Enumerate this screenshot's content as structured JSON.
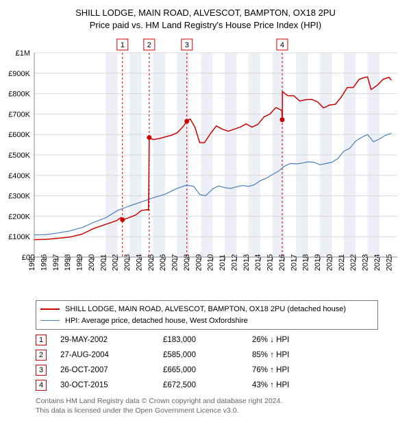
{
  "title_line1": "SHILL LODGE, MAIN ROAD, ALVESCOT, BAMPTON, OX18 2PU",
  "title_line2": "Price paid vs. HM Land Registry's House Price Index (HPI)",
  "chart": {
    "type": "line",
    "bg_color": "#ffffff",
    "plot_border_color": "#888888",
    "grid_color": "#d8d8d8",
    "grid_width": 1,
    "x_start_year": 1995,
    "x_end_year": 2025.5,
    "x_ticks": [
      1995,
      1996,
      1997,
      1998,
      1999,
      2000,
      2001,
      2002,
      2003,
      2004,
      2005,
      2006,
      2007,
      2008,
      2009,
      2010,
      2011,
      2012,
      2013,
      2014,
      2015,
      2016,
      2017,
      2018,
      2019,
      2020,
      2021,
      2022,
      2023,
      2024,
      2025
    ],
    "y_min": 0,
    "y_max": 1000000,
    "y_ticks": [
      0,
      100000,
      200000,
      300000,
      400000,
      500000,
      600000,
      700000,
      800000,
      900000,
      1000000
    ],
    "y_tick_labels": [
      "£0",
      "£100K",
      "£200K",
      "£300K",
      "£400K",
      "£500K",
      "£600K",
      "£700K",
      "£800K",
      "£900K",
      "£1M"
    ],
    "band_color": "#eceff5",
    "band_years": [
      [
        2001,
        2002
      ],
      [
        2003,
        2004
      ],
      [
        2005,
        2006
      ],
      [
        2007,
        2008
      ],
      [
        2009,
        2010
      ],
      [
        2011,
        2012
      ],
      [
        2013,
        2014
      ],
      [
        2015,
        2016
      ],
      [
        2017,
        2018
      ],
      [
        2019,
        2020
      ],
      [
        2021,
        2022
      ],
      [
        2023,
        2024
      ]
    ],
    "marker_vline_dash": "3,3",
    "marker_border_color": "#cc0000",
    "marker_fill_color": "#ffffff",
    "marker_text_color": "#000000",
    "marker_box_size": 16,
    "markers": [
      {
        "label": "1",
        "x": 2002.41
      },
      {
        "label": "2",
        "x": 2004.66
      },
      {
        "label": "3",
        "x": 2007.82
      },
      {
        "label": "4",
        "x": 2015.83
      }
    ],
    "series_property": {
      "color": "#cc0000",
      "width": 1.5,
      "points": [
        [
          1995,
          85000
        ],
        [
          1996,
          87000
        ],
        [
          1997,
          92000
        ],
        [
          1998,
          98000
        ],
        [
          1999,
          112000
        ],
        [
          2000,
          140000
        ],
        [
          2001,
          160000
        ],
        [
          2001.9,
          178000
        ],
        [
          2002.3,
          194000
        ],
        [
          2002.41,
          183000
        ],
        [
          2002.5,
          183000
        ],
        [
          2003.5,
          205000
        ],
        [
          2004.0,
          228000
        ],
        [
          2004.5,
          232000
        ],
        [
          2004.6,
          230000
        ],
        [
          2004.66,
          585000
        ],
        [
          2005,
          575000
        ],
        [
          2005.5,
          580000
        ],
        [
          2006,
          588000
        ],
        [
          2006.5,
          596000
        ],
        [
          2007,
          608000
        ],
        [
          2007.5,
          638000
        ],
        [
          2007.82,
          665000
        ],
        [
          2007.9,
          670000
        ],
        [
          2008.1,
          676000
        ],
        [
          2008.5,
          636000
        ],
        [
          2008.9,
          560000
        ],
        [
          2009.3,
          560000
        ],
        [
          2009.8,
          604000
        ],
        [
          2010.3,
          642000
        ],
        [
          2010.8,
          626000
        ],
        [
          2011.3,
          616000
        ],
        [
          2011.8,
          626000
        ],
        [
          2012.3,
          636000
        ],
        [
          2012.8,
          652000
        ],
        [
          2013.3,
          636000
        ],
        [
          2013.8,
          650000
        ],
        [
          2014.3,
          686000
        ],
        [
          2014.8,
          700000
        ],
        [
          2015.3,
          732000
        ],
        [
          2015.8,
          718000
        ],
        [
          2015.83,
          672500
        ],
        [
          2015.84,
          672500
        ],
        [
          2015.85,
          810000
        ],
        [
          2016.3,
          790000
        ],
        [
          2016.8,
          790000
        ],
        [
          2017.3,
          764000
        ],
        [
          2017.8,
          770000
        ],
        [
          2018.3,
          772000
        ],
        [
          2018.8,
          760000
        ],
        [
          2019.3,
          730000
        ],
        [
          2019.8,
          744000
        ],
        [
          2020.3,
          748000
        ],
        [
          2020.8,
          784000
        ],
        [
          2021.3,
          830000
        ],
        [
          2021.8,
          830000
        ],
        [
          2022.3,
          870000
        ],
        [
          2022.8,
          880000
        ],
        [
          2023.0,
          882000
        ],
        [
          2023.3,
          820000
        ],
        [
          2023.8,
          840000
        ],
        [
          2024.3,
          870000
        ],
        [
          2024.8,
          880000
        ],
        [
          2025.0,
          866000
        ]
      ]
    },
    "series_hpi": {
      "color": "#4a7ebb",
      "width": 1.2,
      "points": [
        [
          1995,
          108000
        ],
        [
          1996,
          110000
        ],
        [
          1997,
          118000
        ],
        [
          1998,
          128000
        ],
        [
          1999,
          144000
        ],
        [
          2000,
          170000
        ],
        [
          2001,
          192000
        ],
        [
          2002,
          228000
        ],
        [
          2003,
          250000
        ],
        [
          2004,
          270000
        ],
        [
          2005,
          290000
        ],
        [
          2006,
          308000
        ],
        [
          2007,
          336000
        ],
        [
          2007.8,
          352000
        ],
        [
          2008.4,
          346000
        ],
        [
          2008.9,
          306000
        ],
        [
          2009.4,
          300000
        ],
        [
          2010,
          334000
        ],
        [
          2010.5,
          348000
        ],
        [
          2011,
          340000
        ],
        [
          2011.5,
          336000
        ],
        [
          2012,
          344000
        ],
        [
          2012.5,
          350000
        ],
        [
          2013,
          346000
        ],
        [
          2013.5,
          354000
        ],
        [
          2014,
          374000
        ],
        [
          2014.5,
          386000
        ],
        [
          2015,
          404000
        ],
        [
          2015.5,
          420000
        ],
        [
          2016,
          444000
        ],
        [
          2016.5,
          458000
        ],
        [
          2017,
          456000
        ],
        [
          2017.5,
          460000
        ],
        [
          2018,
          466000
        ],
        [
          2018.5,
          464000
        ],
        [
          2019,
          452000
        ],
        [
          2019.5,
          458000
        ],
        [
          2020,
          464000
        ],
        [
          2020.5,
          482000
        ],
        [
          2021,
          518000
        ],
        [
          2021.5,
          532000
        ],
        [
          2022,
          568000
        ],
        [
          2022.5,
          586000
        ],
        [
          2023,
          600000
        ],
        [
          2023.5,
          564000
        ],
        [
          2024,
          578000
        ],
        [
          2024.5,
          596000
        ],
        [
          2025,
          606000
        ]
      ]
    },
    "sale_dots": {
      "color": "#cc0000",
      "radius": 3.5,
      "points": [
        [
          2002.41,
          183000
        ],
        [
          2004.66,
          585000
        ],
        [
          2007.82,
          665000
        ],
        [
          2015.83,
          672500
        ]
      ]
    }
  },
  "legend": {
    "series_property_label": "SHILL LODGE, MAIN ROAD, ALVESCOT, BAMPTON, OX18 2PU (detached house)",
    "series_hpi_label": "HPI: Average price, detached house, West Oxfordshire"
  },
  "transactions": [
    {
      "n": "1",
      "date": "29-MAY-2002",
      "price": "£183,000",
      "pct": "26% ↓ HPI"
    },
    {
      "n": "2",
      "date": "27-AUG-2004",
      "price": "£585,000",
      "pct": "85% ↑ HPI"
    },
    {
      "n": "3",
      "date": "26-OCT-2007",
      "price": "£665,000",
      "pct": "76% ↑ HPI"
    },
    {
      "n": "4",
      "date": "30-OCT-2015",
      "price": "£672,500",
      "pct": "43% ↑ HPI"
    }
  ],
  "footer_line1": "Contains HM Land Registry data © Crown copyright and database right 2024.",
  "footer_line2": "This data is licensed under the Open Government Licence v3.0.",
  "colors": {
    "footer_text": "#666666"
  }
}
